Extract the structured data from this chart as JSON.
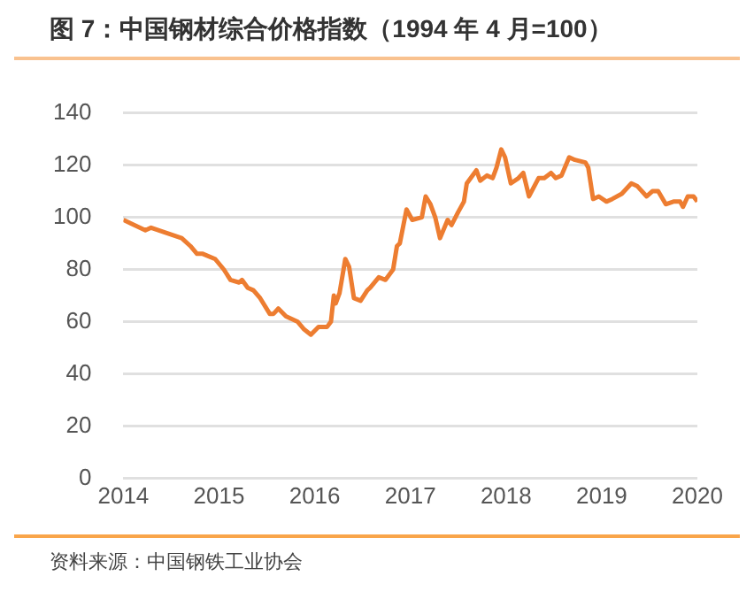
{
  "chart_data": {
    "type": "line",
    "title": "图 7：中国钢材综合价格指数（1994 年 4 月=100）",
    "annotations": [
      "资料来源：中国钢铁工业协会"
    ],
    "x": [
      2014.0,
      2014.23,
      2014.29,
      2014.61,
      2014.7,
      2014.77,
      2014.83,
      2014.96,
      2015.05,
      2015.12,
      2015.21,
      2015.24,
      2015.3,
      2015.36,
      2015.43,
      2015.53,
      2015.57,
      2015.62,
      2015.7,
      2015.82,
      2015.89,
      2015.96,
      2016.04,
      2016.13,
      2016.17,
      2016.2,
      2016.22,
      2016.26,
      2016.32,
      2016.36,
      2016.41,
      2016.48,
      2016.55,
      2016.58,
      2016.67,
      2016.74,
      2016.82,
      2016.86,
      2016.89,
      2016.96,
      2017.02,
      2017.12,
      2017.16,
      2017.21,
      2017.26,
      2017.31,
      2017.39,
      2017.43,
      2017.5,
      2017.56,
      2017.59,
      2017.69,
      2017.73,
      2017.8,
      2017.86,
      2017.9,
      2017.95,
      2017.99,
      2018.05,
      2018.13,
      2018.18,
      2018.24,
      2018.34,
      2018.4,
      2018.47,
      2018.52,
      2018.58,
      2018.66,
      2018.72,
      2018.83,
      2018.86,
      2018.91,
      2018.97,
      2019.05,
      2019.11,
      2019.21,
      2019.31,
      2019.37,
      2019.47,
      2019.53,
      2019.59,
      2019.67,
      2019.75,
      2019.82,
      2019.85,
      2019.9,
      2019.96,
      2020.0
    ],
    "series": [
      {
        "color": "#ed7d31",
        "values": [
          99,
          95,
          96,
          92,
          89,
          86,
          86,
          84,
          80,
          76,
          75,
          76,
          73,
          72,
          69,
          63,
          63,
          65,
          62,
          60,
          57,
          55,
          58,
          58,
          60,
          70,
          67,
          71,
          84,
          81,
          69,
          68,
          72,
          73,
          77,
          76,
          80,
          89,
          90,
          103,
          99,
          100,
          108,
          105,
          100,
          92,
          99,
          97,
          102,
          106,
          113,
          118,
          114,
          116,
          115,
          119,
          126,
          123,
          113,
          115,
          117,
          108,
          115,
          115,
          117,
          115,
          116,
          123,
          122,
          121,
          119,
          107,
          108,
          106,
          107,
          109,
          113,
          112,
          108,
          110,
          110,
          105,
          106,
          106,
          104,
          108,
          108,
          106
        ]
      }
    ],
    "xlim": [
      2014,
      2020
    ],
    "xticks": [
      2014,
      2015,
      2016,
      2017,
      2018,
      2019,
      2020
    ],
    "ylim": [
      0,
      140
    ],
    "yticks": [
      0,
      20,
      40,
      60,
      80,
      100,
      120,
      140
    ],
    "grid": "y",
    "legend": false,
    "marker": "none",
    "line_style": "solid"
  }
}
